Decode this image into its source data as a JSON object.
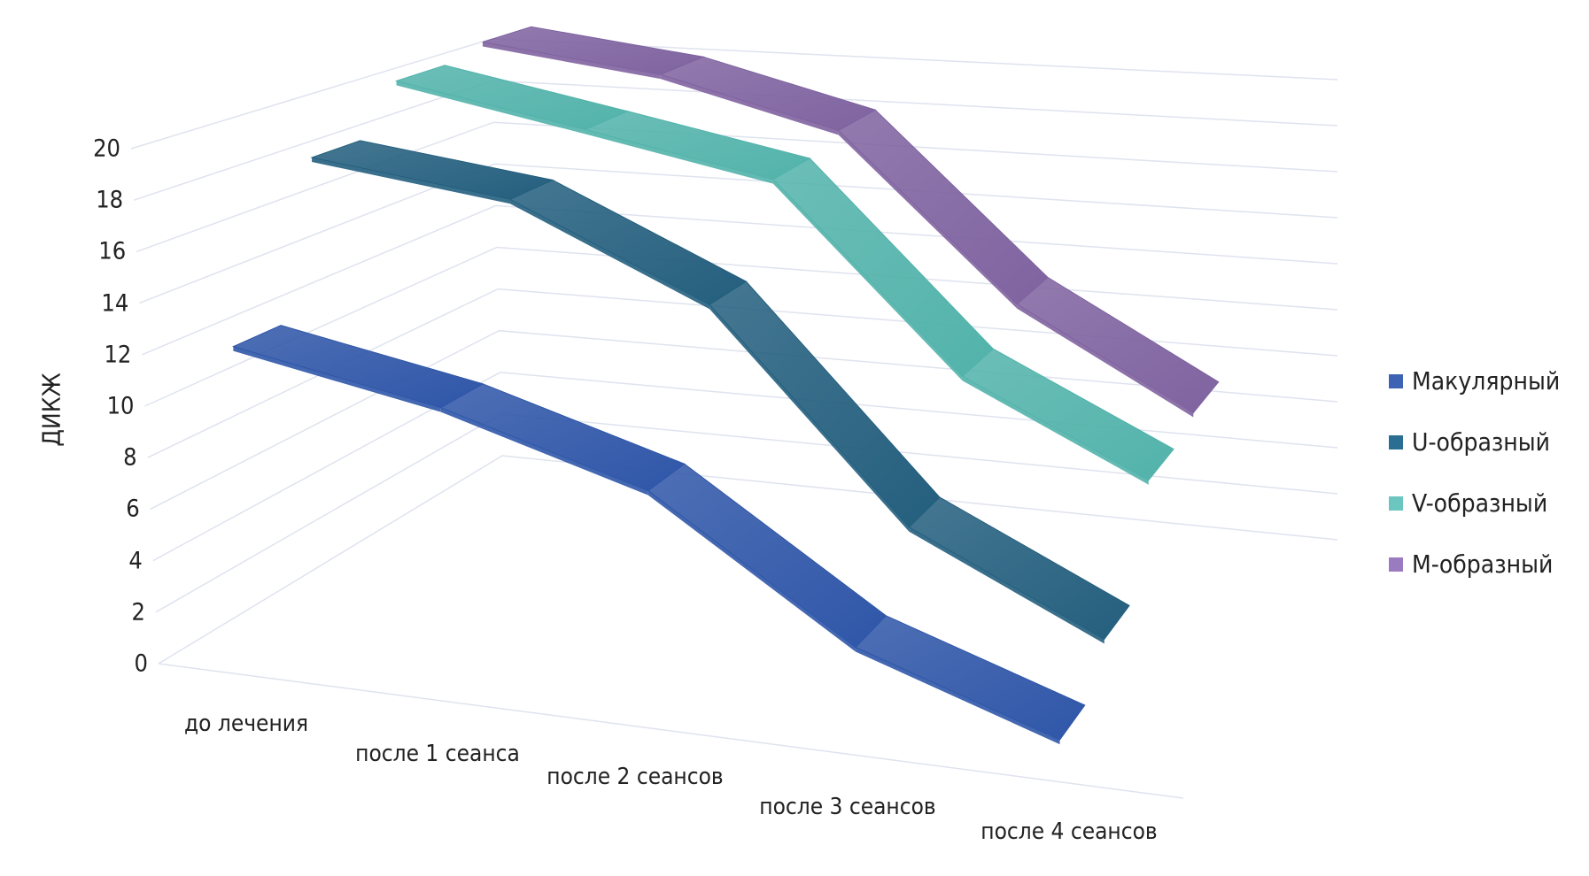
{
  "chart_data": {
    "type": "line",
    "subtype": "3d-ribbon",
    "title": "",
    "xlabel": "",
    "ylabel": "ДИКЖ",
    "ylim": [
      0,
      20
    ],
    "yticks": [
      "0",
      "2",
      "4",
      "6",
      "8",
      "10",
      "12",
      "14",
      "16",
      "18",
      "20"
    ],
    "categories": [
      "до лечения",
      "после 1 сеанса",
      "после 2 сеансов",
      "после 3 сеансов",
      "после 4 сеансов"
    ],
    "grid": true,
    "legend_position": "right",
    "series": [
      {
        "name": "Макулярный",
        "color": "#2f56a8",
        "legend_color": "#3e63b5",
        "values": [
          12.3,
          10.8,
          8.5,
          3.5,
          1.0
        ]
      },
      {
        "name": "U-образный",
        "color": "#245f7e",
        "legend_color": "#2a6f93",
        "values": [
          18.5,
          17.5,
          14.0,
          6.0,
          2.5
        ]
      },
      {
        "name": "V-образный",
        "color": "#52b3ab",
        "legend_color": "#6cc6c0",
        "values": [
          20.5,
          19.0,
          17.5,
          10.0,
          6.5
        ]
      },
      {
        "name": "М-образный",
        "color": "#7f63a0",
        "legend_color": "#9a7bbf",
        "values": [
          21.0,
          20.0,
          18.0,
          11.0,
          7.0
        ]
      }
    ]
  }
}
